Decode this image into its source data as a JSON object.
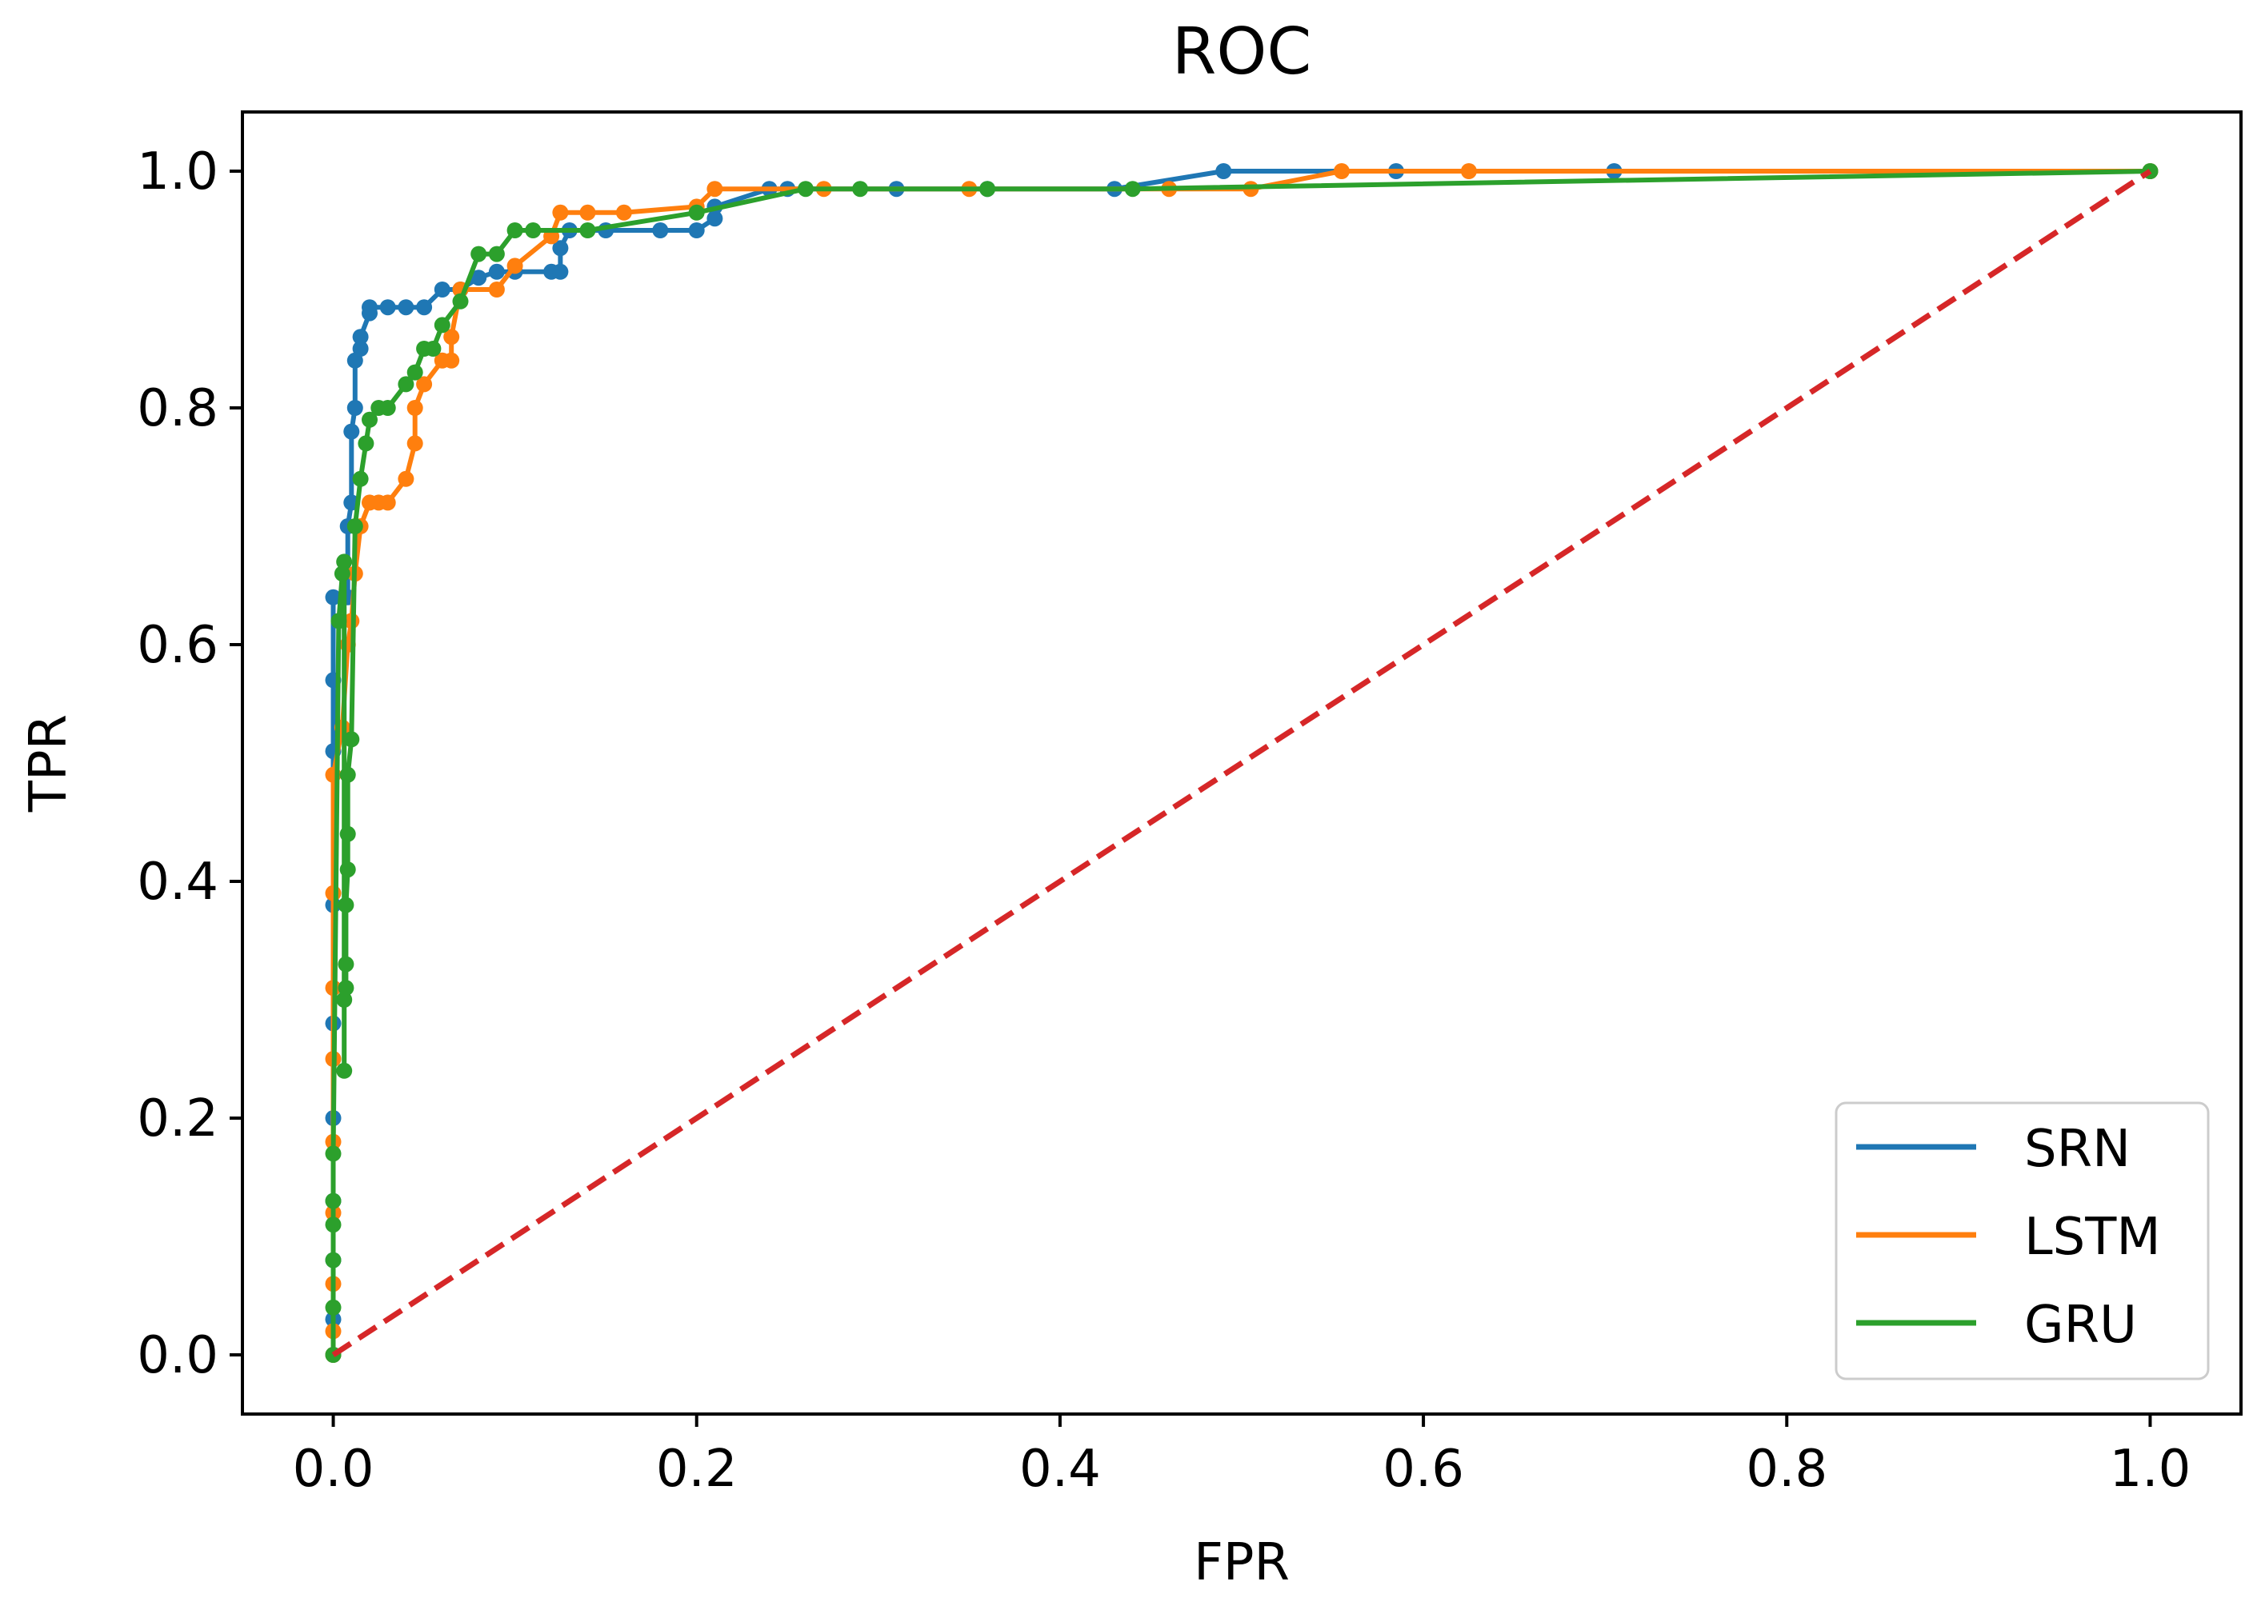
{
  "chart_data": {
    "type": "line",
    "title": "ROC",
    "xlabel": "FPR",
    "ylabel": "TPR",
    "xlim": [
      -0.05,
      1.05
    ],
    "ylim": [
      -0.05,
      1.05
    ],
    "xticks": [
      {
        "value": 0.0,
        "label": "0.0"
      },
      {
        "value": 0.2,
        "label": "0.2"
      },
      {
        "value": 0.4,
        "label": "0.4"
      },
      {
        "value": 0.6,
        "label": "0.6"
      },
      {
        "value": 0.8,
        "label": "0.8"
      },
      {
        "value": 1.0,
        "label": "1.0"
      }
    ],
    "yticks": [
      {
        "value": 0.0,
        "label": "0.0"
      },
      {
        "value": 0.2,
        "label": "0.2"
      },
      {
        "value": 0.4,
        "label": "0.4"
      },
      {
        "value": 0.6,
        "label": "0.6"
      },
      {
        "value": 0.8,
        "label": "0.8"
      },
      {
        "value": 1.0,
        "label": "1.0"
      }
    ],
    "grid": false,
    "legend_position": "bottom-right",
    "series": [
      {
        "name": "SRN",
        "color": "#1f77b4",
        "x": [
          0.0,
          0.0,
          0.0,
          0.0,
          0.0,
          0.0,
          0.0,
          0.0,
          0.0,
          0.0,
          0.008,
          0.008,
          0.01,
          0.01,
          0.012,
          0.012,
          0.015,
          0.015,
          0.02,
          0.02,
          0.03,
          0.04,
          0.05,
          0.06,
          0.07,
          0.08,
          0.09,
          0.1,
          0.12,
          0.125,
          0.125,
          0.13,
          0.15,
          0.18,
          0.2,
          0.21,
          0.21,
          0.24,
          0.25,
          0.31,
          0.36,
          0.43,
          0.49,
          0.585,
          0.705,
          1.0
        ],
        "y": [
          0.0,
          0.03,
          0.08,
          0.13,
          0.2,
          0.28,
          0.38,
          0.51,
          0.57,
          0.64,
          0.64,
          0.7,
          0.72,
          0.78,
          0.8,
          0.84,
          0.85,
          0.86,
          0.88,
          0.885,
          0.885,
          0.885,
          0.885,
          0.9,
          0.9,
          0.91,
          0.915,
          0.915,
          0.915,
          0.915,
          0.935,
          0.95,
          0.95,
          0.95,
          0.95,
          0.96,
          0.97,
          0.985,
          0.985,
          0.985,
          0.985,
          0.985,
          1.0,
          1.0,
          1.0,
          1.0
        ]
      },
      {
        "name": "LSTM",
        "color": "#ff7f0e",
        "x": [
          0.0,
          0.0,
          0.0,
          0.0,
          0.0,
          0.0,
          0.0,
          0.0,
          0.0,
          0.005,
          0.008,
          0.01,
          0.012,
          0.015,
          0.02,
          0.025,
          0.03,
          0.04,
          0.045,
          0.045,
          0.05,
          0.06,
          0.065,
          0.065,
          0.07,
          0.09,
          0.1,
          0.12,
          0.125,
          0.14,
          0.16,
          0.2,
          0.21,
          0.27,
          0.35,
          0.46,
          0.505,
          0.555,
          0.625,
          1.0
        ],
        "y": [
          0.0,
          0.02,
          0.06,
          0.12,
          0.18,
          0.25,
          0.31,
          0.39,
          0.49,
          0.53,
          0.6,
          0.62,
          0.66,
          0.7,
          0.72,
          0.72,
          0.72,
          0.74,
          0.77,
          0.8,
          0.82,
          0.84,
          0.84,
          0.86,
          0.9,
          0.9,
          0.92,
          0.945,
          0.965,
          0.965,
          0.965,
          0.97,
          0.985,
          0.985,
          0.985,
          0.985,
          0.985,
          1.0,
          1.0,
          1.0
        ]
      },
      {
        "name": "GRU",
        "color": "#2ca02c",
        "x": [
          0.0,
          0.0,
          0.0,
          0.0,
          0.0,
          0.0,
          0.003,
          0.005,
          0.006,
          0.006,
          0.006,
          0.007,
          0.007,
          0.007,
          0.008,
          0.008,
          0.008,
          0.01,
          0.012,
          0.015,
          0.018,
          0.02,
          0.025,
          0.03,
          0.04,
          0.045,
          0.05,
          0.055,
          0.06,
          0.07,
          0.08,
          0.09,
          0.1,
          0.11,
          0.14,
          0.2,
          0.26,
          0.29,
          0.36,
          0.44,
          1.0
        ],
        "y": [
          0.0,
          0.04,
          0.08,
          0.11,
          0.13,
          0.17,
          0.62,
          0.66,
          0.67,
          0.24,
          0.3,
          0.31,
          0.33,
          0.38,
          0.41,
          0.44,
          0.49,
          0.52,
          0.7,
          0.74,
          0.77,
          0.79,
          0.8,
          0.8,
          0.82,
          0.83,
          0.85,
          0.85,
          0.87,
          0.89,
          0.93,
          0.93,
          0.95,
          0.95,
          0.95,
          0.965,
          0.985,
          0.985,
          0.985,
          0.985,
          1.0
        ]
      },
      {
        "name": "baseline",
        "color": "#d62728",
        "dashed": true,
        "legend": false,
        "x": [
          0.0,
          1.0
        ],
        "y": [
          0.0,
          1.0
        ]
      }
    ]
  }
}
